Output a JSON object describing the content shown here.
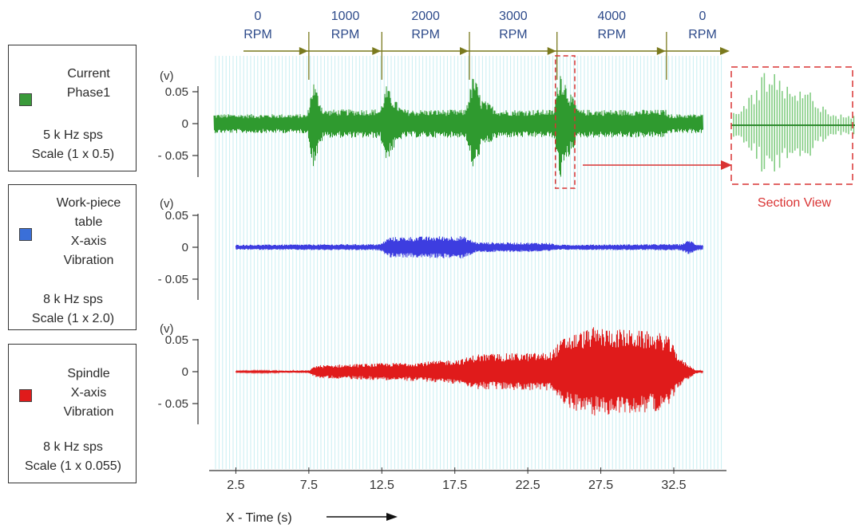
{
  "legend": [
    {
      "name_lines": [
        "Current",
        "Phase1"
      ],
      "rate": "5 k Hz sps",
      "scale": "Scale (1 x 0.5)",
      "color": "#3a9a3a"
    },
    {
      "name_lines": [
        "Work-piece",
        "table",
        "X-axis",
        "Vibration"
      ],
      "rate": "8 k Hz sps",
      "scale": "Scale (1 x 2.0)",
      "color": "#3a6fd8"
    },
    {
      "name_lines": [
        "Spindle",
        "X-axis",
        "Vibration"
      ],
      "rate": "8 k Hz sps",
      "scale": "Scale (1 x 0.055)",
      "color": "#e01b1b"
    }
  ],
  "rpm_labels": [
    {
      "value": "0",
      "unit": "RPM"
    },
    {
      "value": "1000",
      "unit": "RPM"
    },
    {
      "value": "2000",
      "unit": "RPM"
    },
    {
      "value": "3000",
      "unit": "RPM"
    },
    {
      "value": "4000",
      "unit": "RPM"
    },
    {
      "value": "0",
      "unit": "RPM"
    }
  ],
  "section_view_label": "Section View",
  "x_axis_label": "X - Time (s)",
  "chart_data": {
    "type": "line",
    "xlabel": "X - Time (s)",
    "x_ticks": [
      "2.5",
      "7.5",
      "12.5",
      "17.5",
      "22.5",
      "27.5",
      "32.5"
    ],
    "xlim": [
      1,
      36
    ],
    "rpm_boundaries_s": [
      7.5,
      12.5,
      18.5,
      24.5,
      32
    ],
    "section_view_range_s": [
      24.5,
      25.5
    ],
    "series": [
      {
        "name": "Current Phase1",
        "y_unit": "(v)",
        "y_ticks": [
          "0.05",
          "0",
          "- 0.05"
        ],
        "ylim": [
          -0.08,
          0.08
        ],
        "color": "#2f9a2f",
        "envelope_t": [
          1,
          7.4,
          7.8,
          8.5,
          12.4,
          12.8,
          13.2,
          13.8,
          14.2,
          18.2,
          18.8,
          19.3,
          20.5,
          24.3,
          24.7,
          25.2,
          25.6,
          26,
          32,
          32.1,
          34.5
        ],
        "envelope_amp": [
          0.015,
          0.015,
          0.07,
          0.022,
          0.023,
          0.06,
          0.045,
          0.025,
          0.022,
          0.022,
          0.08,
          0.04,
          0.022,
          0.022,
          0.09,
          0.06,
          0.04,
          0.022,
          0.022,
          0.015,
          0.015
        ]
      },
      {
        "name": "Work-piece table X-axis Vibration",
        "y_unit": "(v)",
        "y_ticks": [
          "0.05",
          "0",
          "- 0.05"
        ],
        "ylim": [
          -0.08,
          0.08
        ],
        "color": "#3d3de0",
        "envelope_t": [
          2.5,
          12.4,
          13,
          18,
          19,
          24,
          24.5,
          33,
          33.6,
          34,
          34.5
        ],
        "envelope_amp": [
          0.004,
          0.005,
          0.016,
          0.018,
          0.008,
          0.007,
          0.004,
          0.005,
          0.012,
          0.005,
          0.004
        ]
      },
      {
        "name": "Spindle X-axis Vibration",
        "y_unit": "(v)",
        "y_ticks": [
          "0.05",
          "0",
          "- 0.05"
        ],
        "ylim": [
          -0.08,
          0.08
        ],
        "color": "#e01b1b",
        "envelope_t": [
          2.5,
          7.5,
          8,
          12,
          15,
          18,
          19,
          24,
          25,
          27,
          30,
          32,
          33,
          34,
          34.5
        ],
        "envelope_amp": [
          0.001,
          0.002,
          0.01,
          0.013,
          0.015,
          0.02,
          0.028,
          0.03,
          0.055,
          0.07,
          0.065,
          0.06,
          0.02,
          0.003,
          0.001
        ]
      }
    ]
  }
}
